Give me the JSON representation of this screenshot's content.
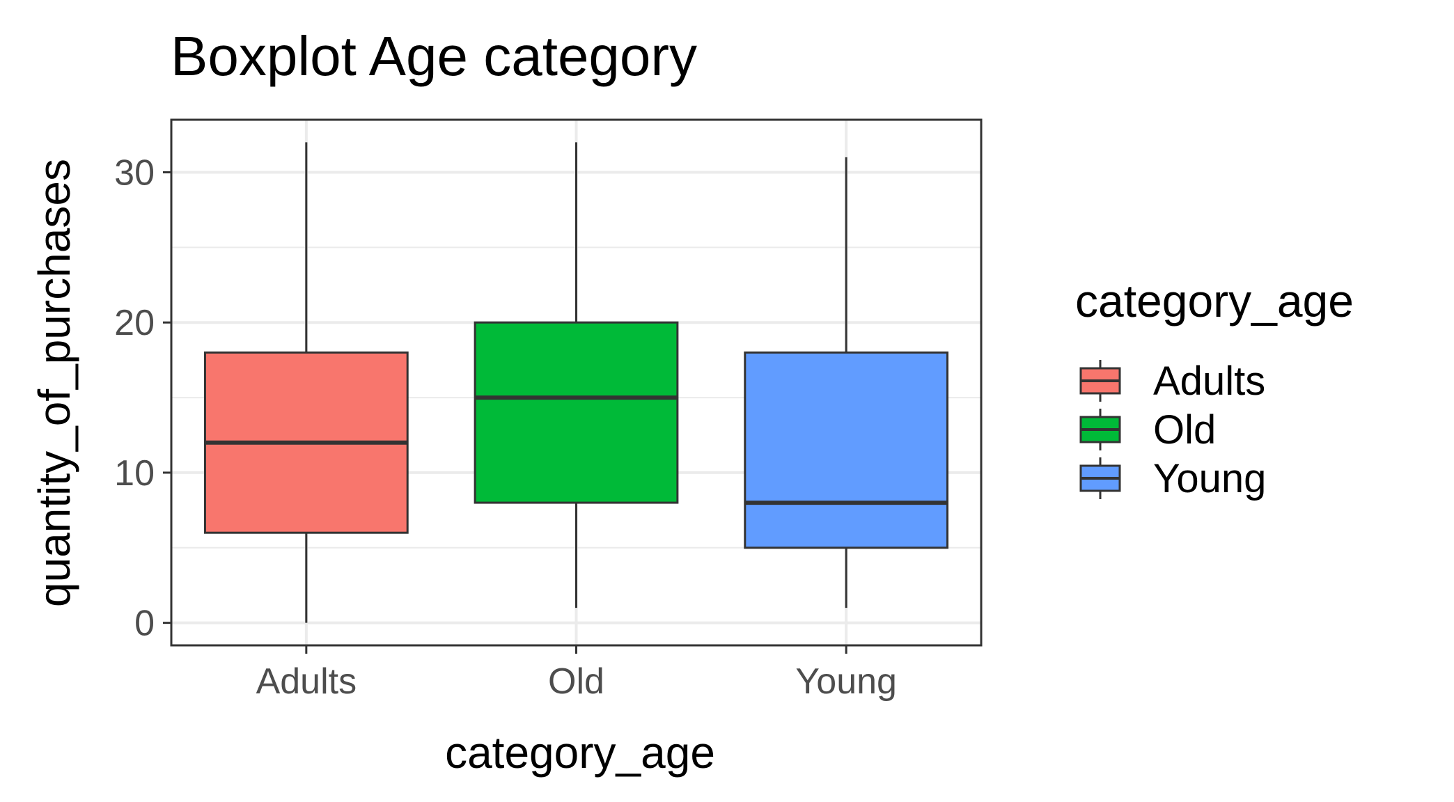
{
  "chart_data": {
    "type": "boxplot",
    "title": "Boxplot Age category",
    "xlabel": "category_age",
    "ylabel": "quantity_of_purchases",
    "ylim": [
      -1.5,
      33.5
    ],
    "yticks": [
      0,
      10,
      20,
      30
    ],
    "grid": true,
    "legend": {
      "title": "category_age",
      "position": "right"
    },
    "categories": [
      "Adults",
      "Old",
      "Young"
    ],
    "series": [
      {
        "name": "Adults",
        "color": "#F8766D",
        "min": 0,
        "q1": 6,
        "median": 12,
        "q3": 18,
        "max": 32
      },
      {
        "name": "Old",
        "color": "#00BA38",
        "min": 1,
        "q1": 8,
        "median": 15,
        "q3": 20,
        "max": 32
      },
      {
        "name": "Young",
        "color": "#619CFF",
        "min": 1,
        "q1": 5,
        "median": 8,
        "q3": 18,
        "max": 31
      }
    ]
  }
}
